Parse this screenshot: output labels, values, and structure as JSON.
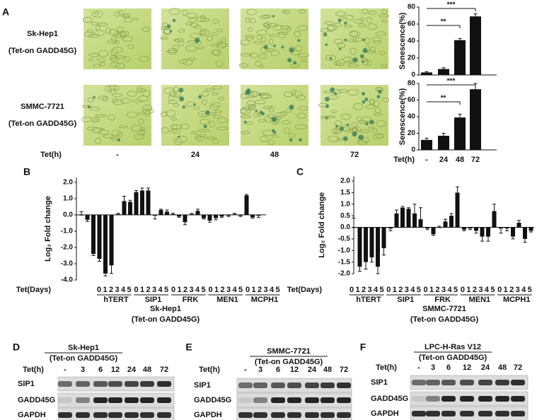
{
  "panel_labels": [
    "A",
    "B",
    "C",
    "D",
    "E",
    "F"
  ],
  "panel_a": {
    "rows": [
      [
        "Sk-Hep1",
        "(Tet-on GADD45G)"
      ],
      [
        "SMMC-7721",
        "(Tet-on GADD45G)"
      ]
    ],
    "column_label": "Tet(h)",
    "columns": [
      "-",
      "24",
      "48",
      "72"
    ]
  },
  "chart_data": [
    {
      "type": "bar",
      "ylabel": "Senescence(%)",
      "values": [
        3,
        7,
        41,
        69
      ],
      "errors": [
        1,
        1.5,
        2,
        3
      ],
      "color": "#111111",
      "ylim": [
        0,
        80
      ],
      "yticks": [
        0,
        20,
        40,
        60,
        80
      ],
      "annotations": [
        "**",
        "***"
      ]
    },
    {
      "type": "bar",
      "ylabel": "Senescence(%)",
      "xlabel": "Tet(h)",
      "categories": [
        "-",
        "24",
        "48",
        "72"
      ],
      "values": [
        12,
        17,
        39,
        73
      ],
      "errors": [
        2,
        3,
        4,
        7
      ],
      "color": "#111111",
      "ylim": [
        0,
        80
      ],
      "yticks": [
        0,
        20,
        40,
        60,
        80
      ],
      "annotations": [
        "**",
        "***"
      ]
    },
    {
      "type": "bar",
      "ylabel": "Log₂ Fold change",
      "xlabel": "Tet(Days)",
      "categories": [
        "0",
        "1",
        "2",
        "3",
        "4",
        "5",
        "0",
        "1",
        "2",
        "3",
        "4",
        "5",
        "0",
        "1",
        "2",
        "3",
        "4",
        "5",
        "0",
        "1",
        "2",
        "3",
        "4",
        "5",
        "0",
        "1",
        "2",
        "3",
        "4",
        "5"
      ],
      "groups": [
        "hTERT",
        "SIP1",
        "FRK",
        "MEN1",
        "MCPH1"
      ],
      "values": [
        0.0,
        -0.3,
        -2.4,
        -2.7,
        -3.6,
        -3.1,
        0.05,
        0.85,
        0.8,
        1.4,
        1.5,
        1.5,
        -0.05,
        0.3,
        0.2,
        0.05,
        -0.1,
        -0.45,
        0.05,
        0.25,
        -0.2,
        -0.35,
        -0.2,
        -0.1,
        -0.05,
        0.05,
        -0.05,
        1.2,
        -0.15,
        -0.05
      ],
      "errors": [
        0.2,
        0.1,
        0.1,
        0.15,
        0.15,
        0.5,
        0.05,
        0.3,
        0.1,
        0.1,
        0.15,
        0.15,
        0.2,
        0.05,
        0.1,
        0.05,
        0.05,
        0.15,
        0.05,
        0.1,
        0.05,
        0.1,
        0.1,
        0.05,
        0.05,
        0.05,
        0.05,
        0.05,
        0.05,
        0.1
      ],
      "color": "#111111",
      "ylim": [
        -4,
        2.3
      ],
      "yticks": [
        {
          "value": 2,
          "label": "2.0"
        },
        {
          "value": 1,
          "label": "1.0"
        },
        {
          "value": 0,
          "label": "0.0"
        },
        {
          "value": -1,
          "label": "-1.0"
        },
        {
          "value": -2,
          "label": "-2.0"
        },
        {
          "value": -3,
          "label": "-3.0"
        },
        {
          "value": -4,
          "label": "-4.0"
        }
      ],
      "caption": [
        "Sk-Hep1",
        "(Tet-on GADD45G)"
      ]
    },
    {
      "type": "bar",
      "ylabel": "Log₂ Fold change",
      "xlabel": "Tet(Days)",
      "categories": [
        "0",
        "1",
        "2",
        "3",
        "4",
        "5",
        "0",
        "1",
        "2",
        "3",
        "4",
        "5",
        "0",
        "1",
        "2",
        "3",
        "4",
        "5",
        "0",
        "1",
        "2",
        "3",
        "4",
        "5",
        "0",
        "1",
        "2",
        "3",
        "4",
        "5"
      ],
      "groups": [
        "hTERT",
        "SIP1",
        "FRK",
        "MEN1",
        "MCPH1"
      ],
      "values": [
        0.0,
        -1.7,
        -1.5,
        -1.3,
        -1.7,
        -0.9,
        -0.05,
        0.6,
        0.85,
        0.8,
        0.6,
        0.35,
        -0.05,
        -0.3,
        0.0,
        0.25,
        0.5,
        1.5,
        -0.1,
        -0.05,
        -0.15,
        -0.4,
        -0.4,
        0.7,
        -0.05,
        -0.05,
        -0.4,
        0.2,
        -0.5,
        -0.15
      ],
      "errors": [
        0.4,
        0.2,
        0.3,
        0.2,
        0.3,
        0.3,
        0.1,
        0.15,
        0.05,
        0.05,
        0.4,
        0.5,
        0.05,
        0.05,
        0.05,
        0.1,
        0.1,
        0.25,
        0.05,
        0.05,
        0.1,
        0.2,
        0.2,
        0.3,
        0.2,
        0.1,
        0.1,
        0.1,
        0.15,
        0.05
      ],
      "color": "#111111",
      "ylim": [
        -2,
        2.2
      ],
      "yticks": [
        {
          "value": 2,
          "label": "2.0"
        },
        {
          "value": 1.5,
          "label": "1.5"
        },
        {
          "value": 1,
          "label": "1.0"
        },
        {
          "value": 0.5,
          "label": "0.5"
        },
        {
          "value": 0,
          "label": "0.0"
        },
        {
          "value": -0.5,
          "label": "-0.5"
        },
        {
          "value": -1,
          "label": "-1.0"
        },
        {
          "value": -1.5,
          "label": "-1.5"
        },
        {
          "value": -2,
          "label": "-2.0"
        }
      ],
      "caption": [
        "SMMC-7721",
        "(Tet-on GADD45G)"
      ]
    }
  ],
  "blots": [
    {
      "title": "Sk-Hep1",
      "subtitle": "(Tet-on GADD45G)",
      "lane_label": "Tet(h)",
      "lanes": [
        "-",
        "3",
        "6",
        "12",
        "24",
        "48",
        "72"
      ],
      "rows": [
        "SIP1",
        "GADD45G",
        "GAPDH"
      ]
    },
    {
      "title": "SMMC-7721",
      "subtitle": "(Tet-on GADD45G)",
      "lane_label": "Tet(h)",
      "lanes": [
        "-",
        "3",
        "6",
        "12",
        "24",
        "48",
        "72"
      ],
      "rows": [
        "SIP1",
        "GADD45G",
        "GAPDH"
      ]
    },
    {
      "title": "LPC-H-Ras V12",
      "subtitle": "(Tet-on GADD45G)",
      "lane_label": "Tet(h)",
      "lanes": [
        "-",
        "3",
        "6",
        "12",
        "24",
        "48",
        "72"
      ],
      "rows": [
        "SIP1",
        "GADD45G",
        "GAPDH"
      ]
    }
  ]
}
